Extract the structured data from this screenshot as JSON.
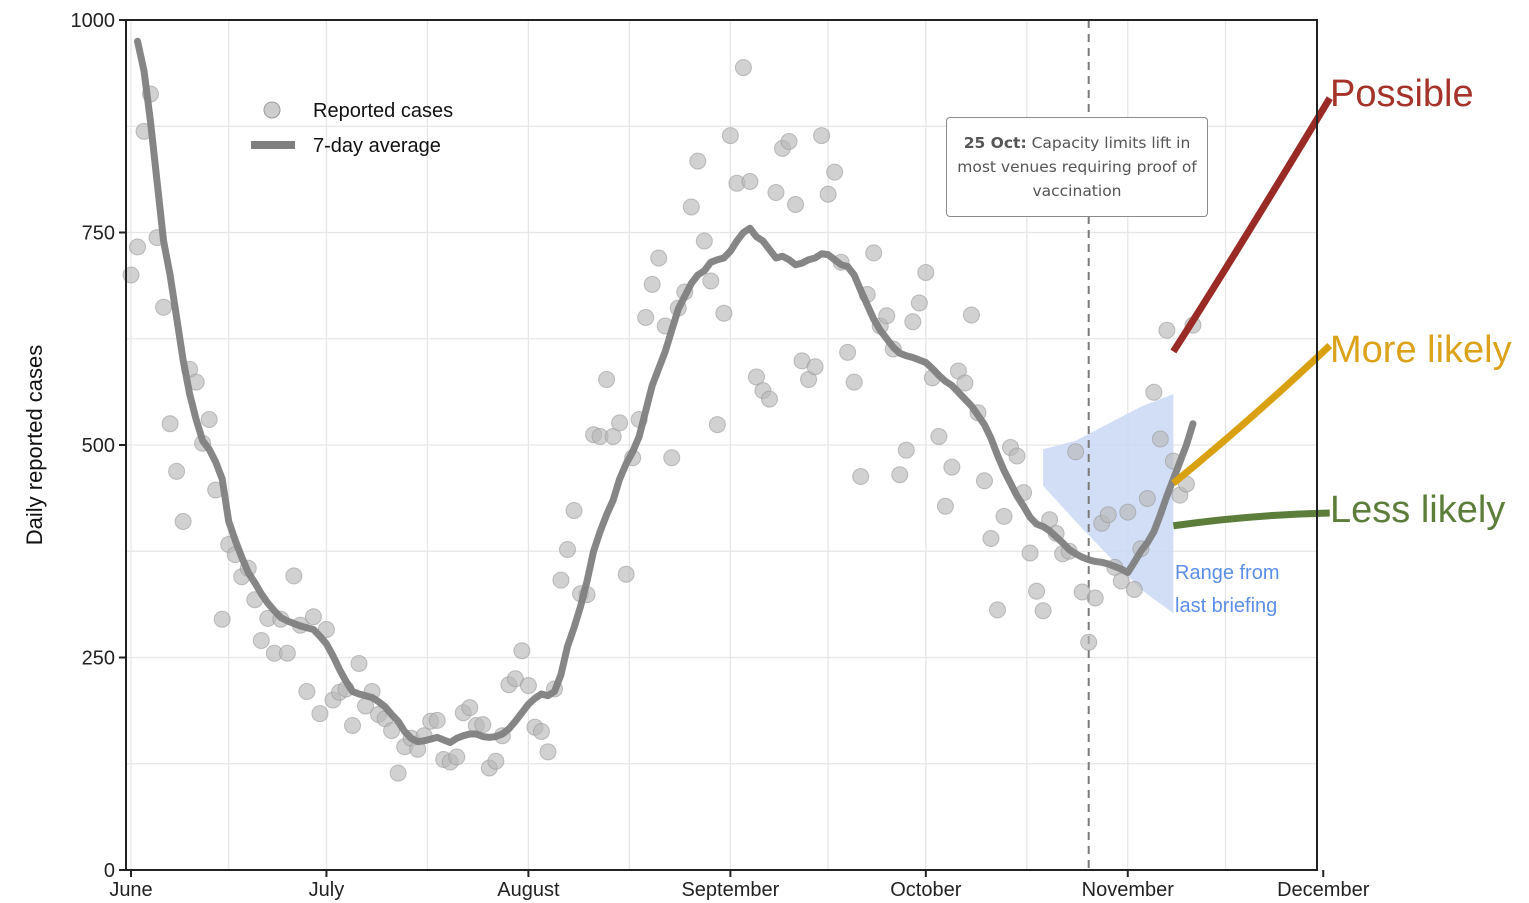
{
  "chart_data": {
    "type": "scatter+line",
    "ylabel": "Daily reported cases",
    "ylim": [
      0,
      1000
    ],
    "yticks": [
      0,
      250,
      500,
      750,
      1000
    ],
    "xdomain_days": [
      0,
      184
    ],
    "x_ticks": [
      {
        "label": "June",
        "day": 0
      },
      {
        "label": "July",
        "day": 30
      },
      {
        "label": "August",
        "day": 61
      },
      {
        "label": "September",
        "day": 92
      },
      {
        "label": "October",
        "day": 122
      },
      {
        "label": "November",
        "day": 153
      },
      {
        "label": "December",
        "day": 183
      }
    ],
    "legend": {
      "placement": "top-left",
      "scatter": "Reported cases",
      "line": "7-day average"
    },
    "reported_cases": [
      [
        0,
        700
      ],
      [
        1,
        733
      ],
      [
        2,
        869
      ],
      [
        3,
        913
      ],
      [
        4,
        744
      ],
      [
        5,
        662
      ],
      [
        6,
        525
      ],
      [
        7,
        469
      ],
      [
        8,
        410
      ],
      [
        9,
        589
      ],
      [
        10,
        574
      ],
      [
        11,
        502
      ],
      [
        12,
        530
      ],
      [
        13,
        447
      ],
      [
        14,
        295
      ],
      [
        15,
        383
      ],
      [
        16,
        371
      ],
      [
        17,
        345
      ],
      [
        18,
        355
      ],
      [
        19,
        318
      ],
      [
        20,
        270
      ],
      [
        21,
        296
      ],
      [
        22,
        255
      ],
      [
        23,
        295
      ],
      [
        24,
        255
      ],
      [
        25,
        346
      ],
      [
        26,
        288
      ],
      [
        27,
        210
      ],
      [
        28,
        298
      ],
      [
        29,
        184
      ],
      [
        30,
        283
      ],
      [
        31,
        200
      ],
      [
        32,
        209
      ],
      [
        33,
        213
      ],
      [
        34,
        170
      ],
      [
        35,
        243
      ],
      [
        36,
        193
      ],
      [
        37,
        210
      ],
      [
        38,
        183
      ],
      [
        39,
        178
      ],
      [
        40,
        164
      ],
      [
        41,
        114
      ],
      [
        42,
        145
      ],
      [
        43,
        155
      ],
      [
        44,
        142
      ],
      [
        45,
        158
      ],
      [
        46,
        175
      ],
      [
        47,
        176
      ],
      [
        48,
        130
      ],
      [
        49,
        127
      ],
      [
        50,
        133
      ],
      [
        51,
        185
      ],
      [
        52,
        191
      ],
      [
        53,
        170
      ],
      [
        54,
        171
      ],
      [
        55,
        120
      ],
      [
        56,
        128
      ],
      [
        57,
        158
      ],
      [
        58,
        218
      ],
      [
        59,
        225
      ],
      [
        60,
        258
      ],
      [
        61,
        217
      ],
      [
        62,
        168
      ],
      [
        63,
        163
      ],
      [
        64,
        139
      ],
      [
        65,
        213
      ],
      [
        66,
        341
      ],
      [
        67,
        377
      ],
      [
        68,
        423
      ],
      [
        69,
        325
      ],
      [
        70,
        324
      ],
      [
        71,
        512
      ],
      [
        72,
        510
      ],
      [
        73,
        577
      ],
      [
        74,
        510
      ],
      [
        75,
        526
      ],
      [
        76,
        348
      ],
      [
        77,
        485
      ],
      [
        78,
        530
      ],
      [
        79,
        650
      ],
      [
        80,
        689
      ],
      [
        81,
        720
      ],
      [
        82,
        640
      ],
      [
        83,
        485
      ],
      [
        84,
        661
      ],
      [
        85,
        680
      ],
      [
        86,
        780
      ],
      [
        87,
        834
      ],
      [
        88,
        740
      ],
      [
        89,
        693
      ],
      [
        90,
        524
      ],
      [
        91,
        655
      ],
      [
        92,
        864
      ],
      [
        93,
        808
      ],
      [
        94,
        944
      ],
      [
        95,
        810
      ],
      [
        96,
        580
      ],
      [
        97,
        564
      ],
      [
        98,
        554
      ],
      [
        99,
        797
      ],
      [
        100,
        849
      ],
      [
        101,
        857
      ],
      [
        102,
        783
      ],
      [
        103,
        599
      ],
      [
        104,
        577
      ],
      [
        105,
        592
      ],
      [
        106,
        864
      ],
      [
        107,
        795
      ],
      [
        108,
        821
      ],
      [
        109,
        715
      ],
      [
        110,
        609
      ],
      [
        111,
        574
      ],
      [
        112,
        463
      ],
      [
        113,
        677
      ],
      [
        114,
        726
      ],
      [
        115,
        640
      ],
      [
        116,
        652
      ],
      [
        117,
        613
      ],
      [
        118,
        465
      ],
      [
        119,
        494
      ],
      [
        120,
        645
      ],
      [
        121,
        667
      ],
      [
        122,
        703
      ],
      [
        123,
        579
      ],
      [
        124,
        510
      ],
      [
        125,
        428
      ],
      [
        126,
        474
      ],
      [
        127,
        587
      ],
      [
        128,
        573
      ],
      [
        129,
        653
      ],
      [
        130,
        538
      ],
      [
        131,
        458
      ],
      [
        132,
        390
      ],
      [
        133,
        306
      ],
      [
        134,
        416
      ],
      [
        135,
        497
      ],
      [
        136,
        487
      ],
      [
        137,
        444
      ],
      [
        138,
        373
      ],
      [
        139,
        328
      ],
      [
        140,
        305
      ],
      [
        141,
        412
      ],
      [
        142,
        396
      ],
      [
        143,
        372
      ],
      [
        144,
        375
      ],
      [
        145,
        492
      ],
      [
        146,
        327
      ],
      [
        147,
        268
      ],
      [
        148,
        320
      ],
      [
        149,
        408
      ],
      [
        150,
        418
      ],
      [
        151,
        356
      ],
      [
        152,
        340
      ],
      [
        153,
        421
      ],
      [
        154,
        330
      ],
      [
        155,
        378
      ],
      [
        156,
        437
      ],
      [
        157,
        562
      ],
      [
        158,
        507
      ],
      [
        159,
        635
      ],
      [
        160,
        481
      ],
      [
        161,
        441
      ],
      [
        162,
        454
      ],
      [
        163,
        641
      ]
    ],
    "seven_day_average": [
      [
        1,
        975
      ],
      [
        2,
        940
      ],
      [
        3,
        880
      ],
      [
        4,
        810
      ],
      [
        5,
        740
      ],
      [
        6,
        700
      ],
      [
        7,
        650
      ],
      [
        8,
        600
      ],
      [
        9,
        560
      ],
      [
        10,
        530
      ],
      [
        11,
        505
      ],
      [
        12,
        495
      ],
      [
        13,
        480
      ],
      [
        14,
        460
      ],
      [
        15,
        410
      ],
      [
        16,
        388
      ],
      [
        17,
        368
      ],
      [
        18,
        350
      ],
      [
        19,
        338
      ],
      [
        20,
        325
      ],
      [
        21,
        314
      ],
      [
        22,
        305
      ],
      [
        23,
        297
      ],
      [
        24,
        293
      ],
      [
        25,
        290
      ],
      [
        26,
        287
      ],
      [
        27,
        285
      ],
      [
        28,
        283
      ],
      [
        29,
        275
      ],
      [
        30,
        266
      ],
      [
        31,
        252
      ],
      [
        32,
        236
      ],
      [
        33,
        222
      ],
      [
        34,
        210
      ],
      [
        35,
        207
      ],
      [
        36,
        205
      ],
      [
        37,
        203
      ],
      [
        38,
        198
      ],
      [
        39,
        192
      ],
      [
        40,
        183
      ],
      [
        41,
        175
      ],
      [
        42,
        163
      ],
      [
        43,
        155
      ],
      [
        44,
        151
      ],
      [
        45,
        152
      ],
      [
        46,
        154
      ],
      [
        47,
        156
      ],
      [
        48,
        153
      ],
      [
        49,
        150
      ],
      [
        50,
        155
      ],
      [
        51,
        158
      ],
      [
        52,
        160
      ],
      [
        53,
        160
      ],
      [
        54,
        157
      ],
      [
        55,
        156
      ],
      [
        56,
        157
      ],
      [
        57,
        160
      ],
      [
        58,
        166
      ],
      [
        59,
        175
      ],
      [
        60,
        185
      ],
      [
        61,
        195
      ],
      [
        62,
        202
      ],
      [
        63,
        207
      ],
      [
        64,
        205
      ],
      [
        65,
        210
      ],
      [
        66,
        230
      ],
      [
        67,
        263
      ],
      [
        68,
        285
      ],
      [
        69,
        310
      ],
      [
        70,
        340
      ],
      [
        71,
        375
      ],
      [
        72,
        398
      ],
      [
        73,
        418
      ],
      [
        74,
        435
      ],
      [
        75,
        460
      ],
      [
        76,
        478
      ],
      [
        77,
        492
      ],
      [
        78,
        510
      ],
      [
        79,
        540
      ],
      [
        80,
        570
      ],
      [
        81,
        590
      ],
      [
        82,
        610
      ],
      [
        83,
        635
      ],
      [
        84,
        660
      ],
      [
        85,
        675
      ],
      [
        86,
        690
      ],
      [
        87,
        700
      ],
      [
        88,
        705
      ],
      [
        89,
        715
      ],
      [
        90,
        718
      ],
      [
        91,
        720
      ],
      [
        92,
        728
      ],
      [
        93,
        740
      ],
      [
        94,
        750
      ],
      [
        95,
        755
      ],
      [
        96,
        745
      ],
      [
        97,
        740
      ],
      [
        98,
        730
      ],
      [
        99,
        720
      ],
      [
        100,
        722
      ],
      [
        101,
        718
      ],
      [
        102,
        712
      ],
      [
        103,
        714
      ],
      [
        104,
        718
      ],
      [
        105,
        720
      ],
      [
        106,
        725
      ],
      [
        107,
        724
      ],
      [
        108,
        718
      ],
      [
        109,
        712
      ],
      [
        110,
        710
      ],
      [
        111,
        700
      ],
      [
        112,
        682
      ],
      [
        113,
        665
      ],
      [
        114,
        648
      ],
      [
        115,
        635
      ],
      [
        116,
        625
      ],
      [
        117,
        615
      ],
      [
        118,
        608
      ],
      [
        119,
        605
      ],
      [
        120,
        603
      ],
      [
        121,
        600
      ],
      [
        122,
        597
      ],
      [
        123,
        590
      ],
      [
        124,
        582
      ],
      [
        125,
        575
      ],
      [
        126,
        570
      ],
      [
        127,
        562
      ],
      [
        128,
        554
      ],
      [
        129,
        546
      ],
      [
        130,
        535
      ],
      [
        131,
        524
      ],
      [
        132,
        508
      ],
      [
        133,
        488
      ],
      [
        134,
        470
      ],
      [
        135,
        455
      ],
      [
        136,
        440
      ],
      [
        137,
        428
      ],
      [
        138,
        415
      ],
      [
        139,
        407
      ],
      [
        140,
        404
      ],
      [
        141,
        399
      ],
      [
        142,
        392
      ],
      [
        143,
        385
      ],
      [
        144,
        377
      ],
      [
        145,
        372
      ],
      [
        146,
        368
      ],
      [
        147,
        365
      ],
      [
        148,
        363
      ],
      [
        149,
        362
      ],
      [
        150,
        360
      ],
      [
        151,
        357
      ],
      [
        152,
        354
      ],
      [
        153,
        350
      ],
      [
        154,
        362
      ],
      [
        155,
        375
      ],
      [
        156,
        385
      ],
      [
        157,
        398
      ],
      [
        158,
        418
      ],
      [
        159,
        440
      ],
      [
        160,
        460
      ],
      [
        161,
        480
      ],
      [
        162,
        500
      ],
      [
        163,
        525
      ]
    ],
    "annotation": {
      "day": 147,
      "bold": "25 Oct:",
      "text": "Capacity limits lift in most venues requiring proof of vaccination"
    },
    "range_band": {
      "label_line1": "Range from",
      "label_line2": "last briefing",
      "color": "#c9d8f5",
      "label_color": "#5b8ee8",
      "upper": [
        [
          140,
          495
        ],
        [
          145,
          505
        ],
        [
          150,
          525
        ],
        [
          155,
          545
        ],
        [
          160,
          560
        ]
      ],
      "lower": [
        [
          140,
          452
        ],
        [
          145,
          410
        ],
        [
          150,
          370
        ],
        [
          155,
          330
        ],
        [
          160,
          302
        ]
      ]
    },
    "scenarios": [
      {
        "label": "Possible",
        "color": "#9a2a25",
        "label_color": "#a53329",
        "points": [
          [
            160,
            610
          ],
          [
            170,
            730
          ],
          [
            184,
            908
          ]
        ]
      },
      {
        "label": "More likely",
        "color": "#d9a112",
        "label_color": "#dba21a",
        "points": [
          [
            160,
            455
          ],
          [
            172,
            530
          ],
          [
            184,
            617
          ]
        ]
      },
      {
        "label": "Less likely",
        "color": "#5d7d3a",
        "label_color": "#5d7d3a",
        "points": [
          [
            160,
            405
          ],
          [
            172,
            418
          ],
          [
            184,
            420
          ]
        ]
      }
    ],
    "colors": {
      "points": "#b8b8b8",
      "average_line": "#7f7f7f",
      "grid": "#e6e6e6",
      "vline": "#7a7a7a"
    }
  }
}
